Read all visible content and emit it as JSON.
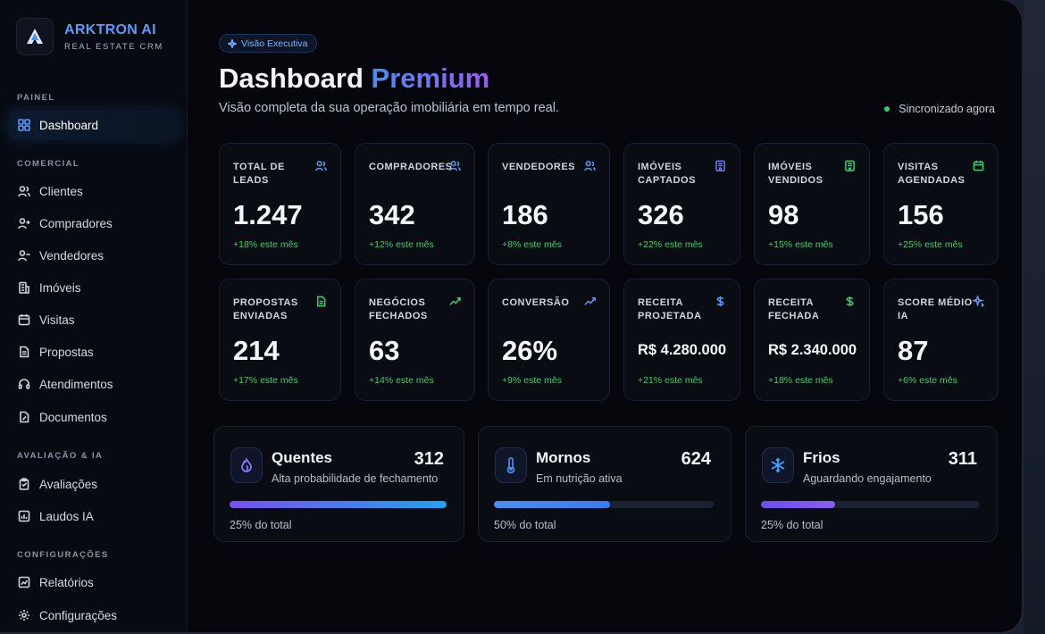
{
  "brand": {
    "name": "ARKTRON AI",
    "subtitle": "REAL ESTATE CRM"
  },
  "sidebar": {
    "sections": [
      {
        "title": "PAINEL",
        "items": [
          {
            "label": "Dashboard",
            "icon": "grid-icon",
            "active": true
          }
        ]
      },
      {
        "title": "COMERCIAL",
        "items": [
          {
            "label": "Clientes",
            "icon": "users-icon"
          },
          {
            "label": "Compradores",
            "icon": "user-plus-icon"
          },
          {
            "label": "Vendedores",
            "icon": "user-minus-icon"
          },
          {
            "label": "Imóveis",
            "icon": "building-icon"
          },
          {
            "label": "Visitas",
            "icon": "calendar-icon"
          },
          {
            "label": "Propostas",
            "icon": "document-icon"
          },
          {
            "label": "Atendimentos",
            "icon": "headset-icon"
          },
          {
            "label": "Documentos",
            "icon": "file-edit-icon"
          }
        ]
      },
      {
        "title": "AVALIAÇÃO & IA",
        "items": [
          {
            "label": "Avaliações",
            "icon": "clipboard-icon"
          },
          {
            "label": "Laudos IA",
            "icon": "chart-doc-icon"
          }
        ]
      },
      {
        "title": "CONFIGURAÇÕES",
        "items": [
          {
            "label": "Relatórios",
            "icon": "report-icon"
          },
          {
            "label": "Configurações",
            "icon": "gear-icon"
          }
        ]
      }
    ]
  },
  "header": {
    "badge": "Visão Executiva",
    "title_main": "Dashboard",
    "title_accent": "Premium",
    "subtitle": "Visão completa da sua operação imobiliária em tempo real.",
    "sync_status": "Sincronizado agora",
    "sync_color": "#2ecc71"
  },
  "kpis": [
    {
      "label": "TOTAL DE LEADS",
      "value": "1.247",
      "change": "+18% este mês",
      "icon": "users-icon",
      "icon_color": "#5b9cf5"
    },
    {
      "label": "COMPRADORES",
      "value": "342",
      "change": "+12% este mês",
      "icon": "users-icon",
      "icon_color": "#5b9cf5"
    },
    {
      "label": "VENDEDORES",
      "value": "186",
      "change": "+8% este mês",
      "icon": "users-icon",
      "icon_color": "#5b9cf5"
    },
    {
      "label": "IMÓVEIS CAPTADOS",
      "value": "326",
      "change": "+22% este mês",
      "icon": "building-icon",
      "icon_color": "#6b7cf0"
    },
    {
      "label": "IMÓVEIS VENDIDOS",
      "value": "98",
      "change": "+15% este mês",
      "icon": "building-icon",
      "icon_color": "#3ccf6e"
    },
    {
      "label": "VISITAS AGENDADAS",
      "value": "156",
      "change": "+25% este mês",
      "icon": "calendar-icon",
      "icon_color": "#3ccf6e"
    },
    {
      "label": "PROPOSTAS ENVIADAS",
      "value": "214",
      "change": "+17% este mês",
      "icon": "document-icon",
      "icon_color": "#3ccf6e"
    },
    {
      "label": "NEGÓCIOS FECHADOS",
      "value": "63",
      "change": "+14% este mês",
      "icon": "trend-up-icon",
      "icon_color": "#3ccf6e"
    },
    {
      "label": "CONVERSÃO",
      "value": "26%",
      "change": "+9% este mês",
      "icon": "trend-up-icon",
      "icon_color": "#5b9cf5"
    },
    {
      "label": "RECEITA PROJETADA",
      "value": "R$ 4.280.000",
      "change": "+21% este mês",
      "icon": "dollar-icon",
      "icon_color": "#5b9cf5"
    },
    {
      "label": "RECEITA FECHADA",
      "value": "R$ 2.340.000",
      "change": "+18% este mês",
      "icon": "dollar-icon",
      "icon_color": "#3ccf6e"
    },
    {
      "label": "SCORE MÉDIO IA",
      "value": "87",
      "change": "+6% este mês",
      "icon": "sparkle-icon",
      "icon_color": "#5b9cf5"
    }
  ],
  "lead_temperature": [
    {
      "name": "Quentes",
      "description": "Alta probabilidade de fechamento",
      "count": "312",
      "percent_label": "25% do total",
      "fill": 1.0,
      "icon": "flame-icon",
      "icon_color": "#8a7dff",
      "gradient": [
        "#7b4ff0",
        "#1fa2f0"
      ]
    },
    {
      "name": "Mornos",
      "description": "Em nutrição ativa",
      "count": "624",
      "percent_label": "50% do total",
      "fill": 0.53,
      "icon": "thermometer-icon",
      "icon_color": "#4a8df0",
      "gradient": [
        "#4a8df0",
        "#3a7bf0"
      ]
    },
    {
      "name": "Frios",
      "description": "Aguardando engajamento",
      "count": "311",
      "percent_label": "25% do total",
      "fill": 0.34,
      "icon": "snowflake-icon",
      "icon_color": "#3aa8ff",
      "gradient": [
        "#6a4ff0",
        "#8a5cf5"
      ]
    }
  ]
}
